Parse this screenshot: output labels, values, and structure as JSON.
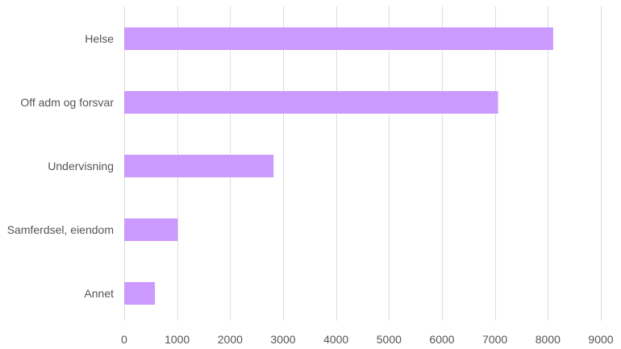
{
  "chart_data": {
    "type": "bar",
    "orientation": "horizontal",
    "title": "",
    "xlabel": "",
    "ylabel": "",
    "categories": [
      "Helse",
      "Off adm og forsvar",
      "Undervisning",
      "Samferdsel, eiendom",
      "Annet"
    ],
    "values": [
      8100,
      7060,
      2820,
      1010,
      580
    ],
    "xlim": [
      0,
      9000
    ],
    "xticks": [
      0,
      1000,
      2000,
      3000,
      4000,
      5000,
      6000,
      7000,
      8000,
      9000
    ],
    "grid": true,
    "legend": "none",
    "bar_color": "#cc99ff",
    "grid_color": "#dddddd",
    "text_color": "#555555"
  }
}
